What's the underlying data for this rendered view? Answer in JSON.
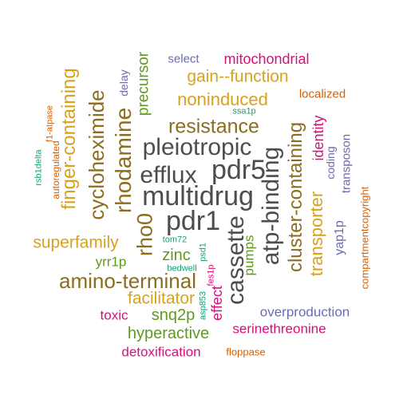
{
  "words": [
    {
      "id": "pdr1",
      "text": "pdr1",
      "color": "#4d4d4d"
    },
    {
      "id": "multidrug",
      "text": "multidrug",
      "color": "#4d4d4d"
    },
    {
      "id": "pdr5",
      "text": "pdr5",
      "color": "#4d4d4d"
    },
    {
      "id": "efflux",
      "text": "efflux",
      "color": "#4d4d4d"
    },
    {
      "id": "pleiotropic",
      "text": "pleiotropic",
      "color": "#4d4d4d"
    },
    {
      "id": "cassette",
      "text": "cassette",
      "color": "#4d4d4d"
    },
    {
      "id": "atp-binding",
      "text": "atp-binding",
      "color": "#4d4d4d"
    },
    {
      "id": "resistance",
      "text": "resistance",
      "color": "#8c6d1f"
    },
    {
      "id": "rhodamine",
      "text": "rhodamine",
      "color": "#8c6d1f"
    },
    {
      "id": "cycloheximide",
      "text": "cycloheximide",
      "color": "#8c6d1f"
    },
    {
      "id": "rho0",
      "text": "rho0",
      "color": "#8c6d1f"
    },
    {
      "id": "amino-terminal",
      "text": "amino-terminal",
      "color": "#8c6d1f"
    },
    {
      "id": "cluster-containing",
      "text": "cluster-containing",
      "color": "#8c6d1f"
    },
    {
      "id": "finger-containing",
      "text": "finger-containing",
      "color": "#d9a21b"
    },
    {
      "id": "superfamily",
      "text": "superfamily",
      "color": "#d9a21b"
    },
    {
      "id": "transporter",
      "text": "transporter",
      "color": "#d9a21b"
    },
    {
      "id": "facilitator",
      "text": "facilitator",
      "color": "#d9a21b"
    },
    {
      "id": "noninduced",
      "text": "noninduced",
      "color": "#d9a21b"
    },
    {
      "id": "gain--function",
      "text": "gain--function",
      "color": "#d9a21b"
    },
    {
      "id": "precursor",
      "text": "precursor",
      "color": "#5e9a1e"
    },
    {
      "id": "zinc",
      "text": "zinc",
      "color": "#5e9a1e"
    },
    {
      "id": "snq2p",
      "text": "snq2p",
      "color": "#5e9a1e"
    },
    {
      "id": "pumps",
      "text": "pumps",
      "color": "#5e9a1e"
    },
    {
      "id": "yrr1p",
      "text": "yrr1p",
      "color": "#5e9a1e"
    },
    {
      "id": "hyperactive",
      "text": "hyperactive",
      "color": "#5e9a1e"
    },
    {
      "id": "mitochondrial",
      "text": "mitochondrial",
      "color": "#d6107a"
    },
    {
      "id": "identity",
      "text": "identity",
      "color": "#d6107a"
    },
    {
      "id": "effect",
      "text": "effect",
      "color": "#d6107a"
    },
    {
      "id": "toxic",
      "text": "toxic",
      "color": "#d6107a"
    },
    {
      "id": "serinethreonine",
      "text": "serinethreonine",
      "color": "#d6107a"
    },
    {
      "id": "detoxification",
      "text": "detoxification",
      "color": "#d6107a"
    },
    {
      "id": "fes1p",
      "text": "fes1p",
      "color": "#d6107a"
    },
    {
      "id": "select",
      "text": "select",
      "color": "#6b6bb5"
    },
    {
      "id": "delay",
      "text": "delay",
      "color": "#6b6bb5"
    },
    {
      "id": "coding",
      "text": "coding",
      "color": "#6b6bb5"
    },
    {
      "id": "transposon",
      "text": "transposon",
      "color": "#6b6bb5"
    },
    {
      "id": "yap1p",
      "text": "yap1p",
      "color": "#6b6bb5"
    },
    {
      "id": "overproduction",
      "text": "overproduction",
      "color": "#6b6bb5"
    },
    {
      "id": "localized",
      "text": "localized",
      "color": "#d95f02"
    },
    {
      "id": "compartmentcopyright",
      "text": "compartmentcopyright",
      "color": "#d95f02"
    },
    {
      "id": "floppase",
      "text": "floppase",
      "color": "#d95f02"
    },
    {
      "id": "autoregulated",
      "text": "autoregulated",
      "color": "#d95f02"
    },
    {
      "id": "f1-atpase",
      "text": "f1-atpase",
      "color": "#d95f02"
    },
    {
      "id": "ssa1p",
      "text": "ssa1p",
      "color": "#1b9e77"
    },
    {
      "id": "rsb1delta",
      "text": "rsb1delta",
      "color": "#1b9e77"
    },
    {
      "id": "tom72",
      "text": "tom72",
      "color": "#1b9e77"
    },
    {
      "id": "bedwell",
      "text": "bedwell",
      "color": "#1b9e77"
    },
    {
      "id": "psd1",
      "text": "psd1",
      "color": "#1b9e77"
    },
    {
      "id": "asp853",
      "text": "asp853",
      "color": "#1b9e77"
    }
  ]
}
